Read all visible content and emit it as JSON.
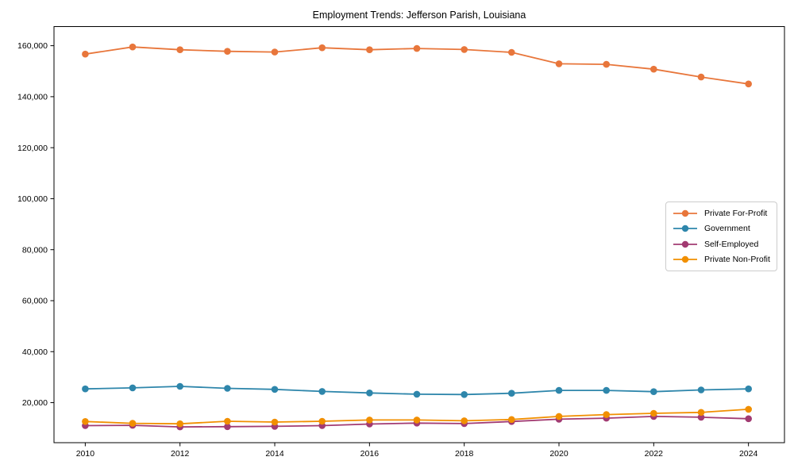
{
  "chart_data": {
    "type": "line",
    "title": "Employment Trends: Jefferson Parish, Louisiana",
    "xlabel": "",
    "ylabel": "",
    "x": [
      2010,
      2011,
      2012,
      2013,
      2014,
      2015,
      2016,
      2017,
      2018,
      2019,
      2020,
      2021,
      2022,
      2023,
      2024
    ],
    "xtick_labels": [
      "2010",
      "2012",
      "2014",
      "2016",
      "2018",
      "2020",
      "2022",
      "2024"
    ],
    "xtick_values": [
      2010,
      2012,
      2014,
      2016,
      2018,
      2020,
      2022,
      2024
    ],
    "ytick_labels": [
      "20,000",
      "40,000",
      "60,000",
      "80,000",
      "100,000",
      "120,000",
      "140,000",
      "160,000"
    ],
    "ytick_values": [
      20000,
      40000,
      60000,
      80000,
      100000,
      120000,
      140000,
      160000
    ],
    "xlim": [
      2009.34,
      2024.76
    ],
    "ylim": [
      4300,
      167500
    ],
    "grid": false,
    "legend_position": "center right",
    "series": [
      {
        "name": "Private For-Profit",
        "color": "#E8763B",
        "values": [
          156700,
          159500,
          158400,
          157800,
          157500,
          159200,
          158400,
          158900,
          158500,
          157400,
          152900,
          152700,
          150800,
          147700,
          145000
        ]
      },
      {
        "name": "Government",
        "color": "#2E86AB",
        "values": [
          25400,
          25800,
          26400,
          25600,
          25200,
          24400,
          23800,
          23300,
          23200,
          23700,
          24800,
          24800,
          24300,
          25000,
          25400
        ]
      },
      {
        "name": "Self-Employed",
        "color": "#A23B72",
        "values": [
          11000,
          11100,
          10500,
          10600,
          10700,
          11000,
          11600,
          12000,
          11800,
          12600,
          13500,
          13900,
          14600,
          14300,
          13700
        ]
      },
      {
        "name": "Private Non-Profit",
        "color": "#F18F01",
        "values": [
          12600,
          11900,
          11700,
          12700,
          12400,
          12700,
          13200,
          13200,
          12900,
          13400,
          14600,
          15300,
          15800,
          16200,
          17400
        ]
      }
    ]
  }
}
